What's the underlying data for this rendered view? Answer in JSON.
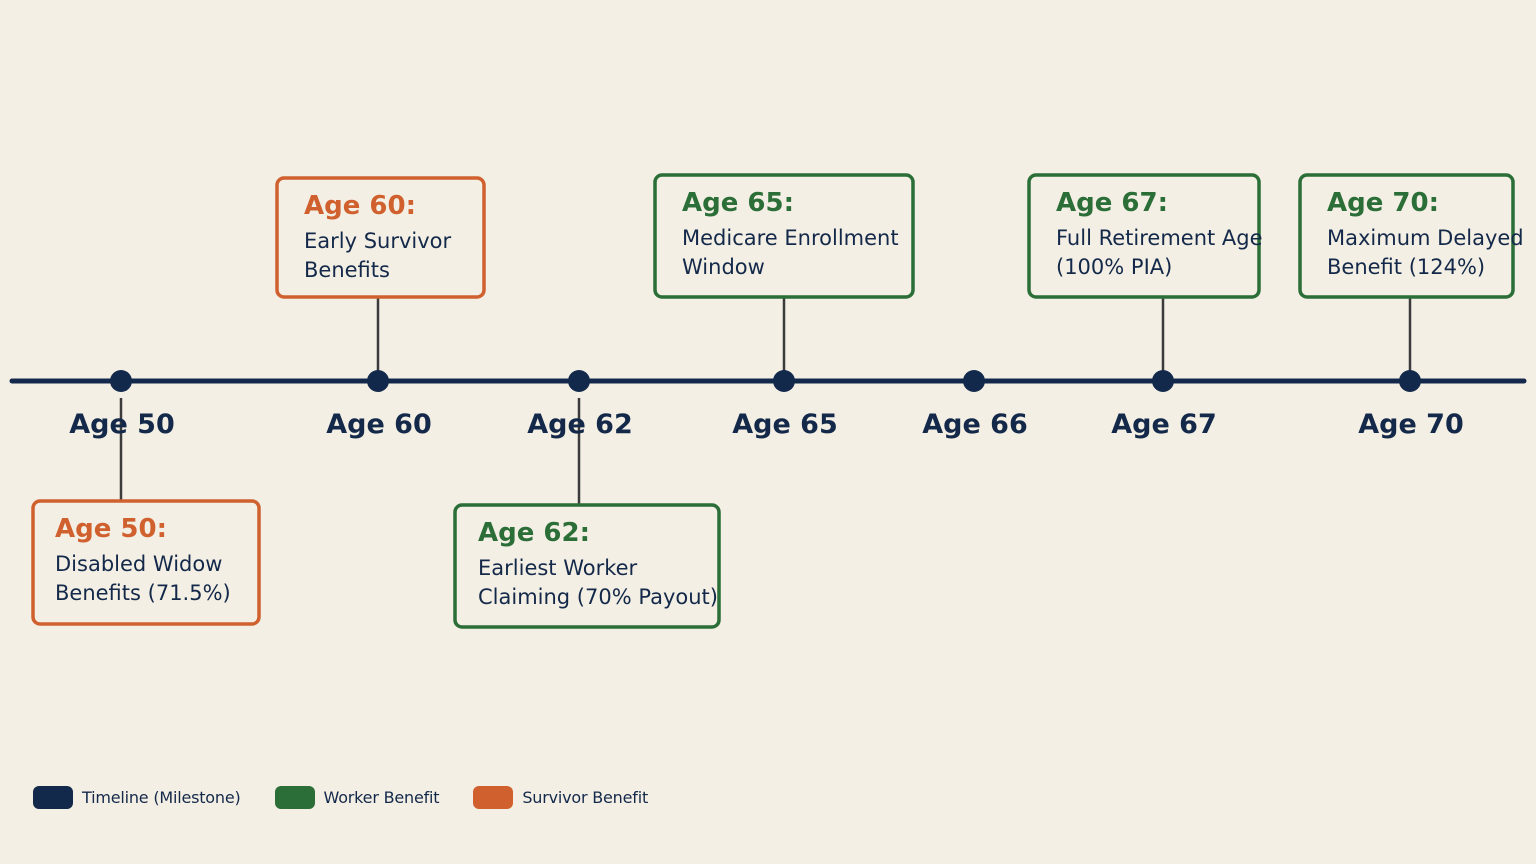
{
  "colors": {
    "background": "#f3efe4",
    "timeline": "#13294b",
    "worker": "#2b6e37",
    "survivor": "#d0602e",
    "text": "#14294a"
  },
  "milestones": [
    {
      "label": "Age 50"
    },
    {
      "label": "Age 60"
    },
    {
      "label": "Age 62"
    },
    {
      "label": "Age 65"
    },
    {
      "label": "Age 66"
    },
    {
      "label": "Age 67"
    },
    {
      "label": "Age 70"
    }
  ],
  "callouts": [
    {
      "milestone": 0,
      "type": "survivor",
      "title": "Age 50:",
      "lines": [
        "Disabled Widow",
        "Benefits (71.5%)"
      ]
    },
    {
      "milestone": 1,
      "type": "survivor",
      "title": "Age 60:",
      "lines": [
        "Early Survivor",
        "Benefits"
      ]
    },
    {
      "milestone": 2,
      "type": "worker",
      "title": "Age 62:",
      "lines": [
        "Earliest Worker",
        "Claiming (70% Payout)"
      ]
    },
    {
      "milestone": 3,
      "type": "worker",
      "title": "Age 65:",
      "lines": [
        "Medicare Enrollment",
        "Window"
      ]
    },
    {
      "milestone": 5,
      "type": "worker",
      "title": "Age 67:",
      "lines": [
        "Full Retirement Age",
        "(100% PIA)"
      ]
    },
    {
      "milestone": 6,
      "type": "worker",
      "title": "Age 70:",
      "lines": [
        "Maximum Delayed",
        "Benefit (124%)"
      ]
    }
  ],
  "legend": {
    "timeline": "Timeline (Milestone)",
    "worker": "Worker Benefit",
    "survivor": "Survivor Benefit"
  }
}
